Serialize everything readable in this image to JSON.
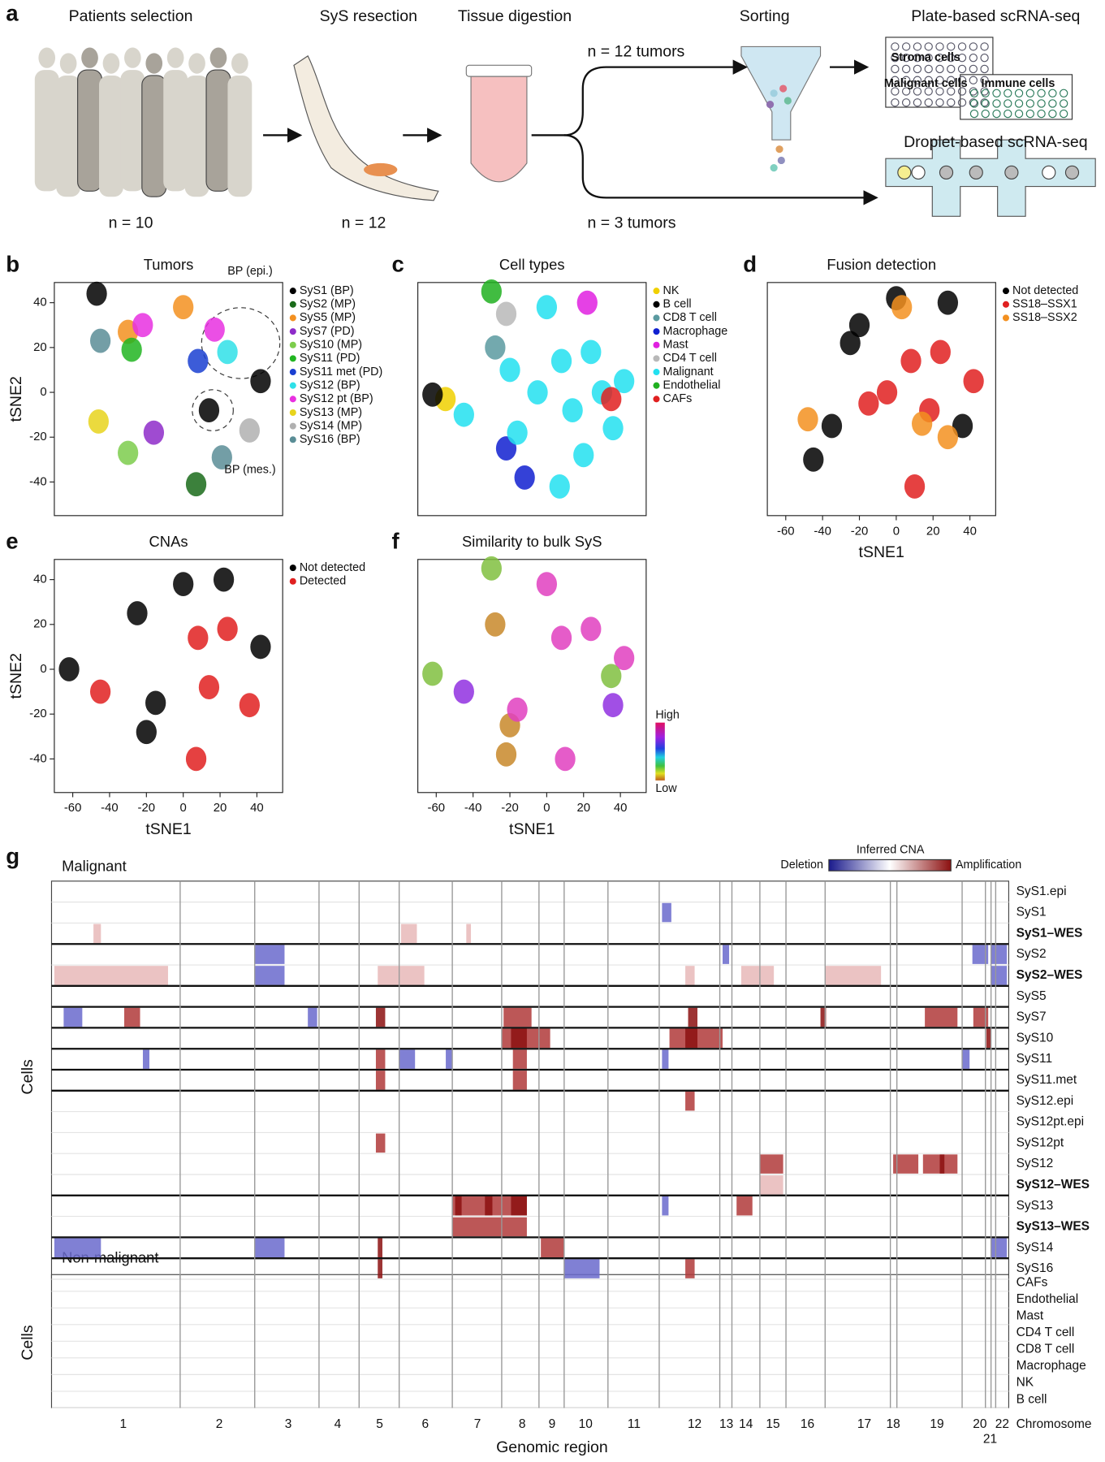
{
  "a": {
    "letter": "a",
    "steps": [
      "Patients selection",
      "SyS resection",
      "Tissue digestion",
      "Sorting",
      "Plate-based scRNA-seq",
      "Droplet-based scRNA-seq"
    ],
    "n": [
      "n = 10",
      "n = 12",
      "n = 12 tumors",
      "n = 3 tumors"
    ],
    "plate_labels": [
      "Stroma cells",
      "Malignant cells",
      "Immune cells"
    ]
  },
  "chart_data": [
    {
      "type": "scatter",
      "letter": "b",
      "title": "Tumors",
      "ylabel": "tSNE2",
      "xlim": [
        -70,
        54
      ],
      "ylim": [
        -55,
        49
      ],
      "yticks": [
        -40,
        -20,
        0,
        20,
        40
      ],
      "annotations": [
        "BP (epi.)",
        "BP (mes.)"
      ],
      "series": [
        {
          "name": "SyS1 (BP)",
          "color": "#000000",
          "x": [
            42,
            14,
            -47
          ],
          "y": [
            5,
            -8,
            44
          ]
        },
        {
          "name": "SyS2 (MP)",
          "color": "#1a6b1a",
          "x": [
            7
          ],
          "y": [
            -41
          ]
        },
        {
          "name": "SyS5 (MP)",
          "color": "#f39020",
          "x": [
            0,
            -30
          ],
          "y": [
            38,
            27
          ]
        },
        {
          "name": "SyS7 (PD)",
          "color": "#8e2bc9",
          "x": [
            -16
          ],
          "y": [
            -18
          ]
        },
        {
          "name": "SyS10 (MP)",
          "color": "#7ccd4c",
          "x": [
            -30
          ],
          "y": [
            -27
          ]
        },
        {
          "name": "SyS11 (PD)",
          "color": "#21b521",
          "x": [
            -28
          ],
          "y": [
            19
          ]
        },
        {
          "name": "SyS11 met (PD)",
          "color": "#1a3fd1",
          "x": [
            8
          ],
          "y": [
            14
          ]
        },
        {
          "name": "SyS12 (BP)",
          "color": "#2fe0e8",
          "x": [
            24
          ],
          "y": [
            18
          ]
        },
        {
          "name": "SyS12 pt (BP)",
          "color": "#e830e0",
          "x": [
            17,
            -22
          ],
          "y": [
            28,
            30
          ]
        },
        {
          "name": "SyS13 (MP)",
          "color": "#e8d41c",
          "x": [
            -46
          ],
          "y": [
            -13
          ]
        },
        {
          "name": "SyS14 (MP)",
          "color": "#b0b0b0",
          "x": [
            36
          ],
          "y": [
            -17
          ]
        },
        {
          "name": "SyS16 (BP)",
          "color": "#5a8d96",
          "x": [
            21,
            -45
          ],
          "y": [
            -29,
            23
          ]
        }
      ]
    },
    {
      "type": "scatter",
      "letter": "c",
      "title": "Cell types",
      "xlim": [
        -70,
        54
      ],
      "ylim": [
        -55,
        49
      ],
      "series": [
        {
          "name": "NK",
          "color": "#f0d000",
          "x": [
            -55
          ],
          "y": [
            -3
          ]
        },
        {
          "name": "B cell",
          "color": "#000000",
          "x": [
            -62
          ],
          "y": [
            -1
          ]
        },
        {
          "name": "CD8 T cell",
          "color": "#5a9aa0",
          "x": [
            -28
          ],
          "y": [
            20
          ]
        },
        {
          "name": "Macrophage",
          "color": "#1020d0",
          "x": [
            -22,
            -12
          ],
          "y": [
            -25,
            -38
          ]
        },
        {
          "name": "Mast",
          "color": "#e020e0",
          "x": [
            22
          ],
          "y": [
            40
          ]
        },
        {
          "name": "CD4 T cell",
          "color": "#b8b8b8",
          "x": [
            -22
          ],
          "y": [
            35
          ]
        },
        {
          "name": "Malignant",
          "color": "#22e0f0",
          "x": [
            0,
            -20,
            8,
            24,
            42,
            -45,
            -16,
            14,
            36,
            20,
            7,
            -5,
            30
          ],
          "y": [
            38,
            10,
            14,
            18,
            5,
            -10,
            -18,
            -8,
            -16,
            -28,
            -42,
            0,
            0
          ]
        },
        {
          "name": "Endothelial",
          "color": "#20b020",
          "x": [
            -30
          ],
          "y": [
            45
          ]
        },
        {
          "name": "CAFs",
          "color": "#e02020",
          "x": [
            35
          ],
          "y": [
            -3
          ]
        }
      ]
    },
    {
      "type": "scatter",
      "letter": "d",
      "title": "Fusion detection",
      "xlabel": "tSNE1",
      "xlim": [
        -70,
        54
      ],
      "ylim": [
        -55,
        49
      ],
      "xticks": [
        -60,
        -40,
        -20,
        0,
        20,
        40
      ],
      "series": [
        {
          "name": "Not detected",
          "color": "#000000",
          "x": [
            -20,
            -45,
            -25,
            36,
            28,
            -35,
            0
          ],
          "y": [
            30,
            -30,
            22,
            -15,
            40,
            -15,
            42
          ]
        },
        {
          "name": "SS18–SSX1",
          "color": "#e02020",
          "x": [
            8,
            24,
            -5,
            42,
            18,
            10,
            -15
          ],
          "y": [
            14,
            18,
            0,
            5,
            -8,
            -42,
            -5
          ]
        },
        {
          "name": "SS18–SSX2",
          "color": "#f39020",
          "x": [
            3,
            -48,
            14,
            28
          ],
          "y": [
            38,
            -12,
            -14,
            -20
          ]
        }
      ]
    },
    {
      "type": "scatter",
      "letter": "e",
      "title": "CNAs",
      "xlabel": "tSNE1",
      "ylabel": "tSNE2",
      "xlim": [
        -70,
        54
      ],
      "ylim": [
        -55,
        49
      ],
      "xticks": [
        -60,
        -40,
        -20,
        0,
        20,
        40
      ],
      "yticks": [
        -40,
        -20,
        0,
        20,
        40
      ],
      "series": [
        {
          "name": "Not detected",
          "color": "#000000",
          "x": [
            -25,
            0,
            -20,
            22,
            42,
            -15,
            -62
          ],
          "y": [
            25,
            38,
            -28,
            40,
            10,
            -15,
            0
          ]
        },
        {
          "name": "Detected",
          "color": "#e02020",
          "x": [
            -45,
            8,
            24,
            36,
            7,
            14
          ],
          "y": [
            -10,
            14,
            18,
            -16,
            -40,
            -8
          ]
        }
      ]
    },
    {
      "type": "scatter",
      "letter": "f",
      "title": "Similarity to bulk SyS",
      "xlabel": "tSNE1",
      "xlim": [
        -70,
        54
      ],
      "ylim": [
        -55,
        49
      ],
      "xticks": [
        -60,
        -40,
        -20,
        0,
        20,
        40
      ],
      "colorbar": [
        "High",
        "Low"
      ],
      "series": [
        {
          "color": "#c8882a",
          "x": [
            -28,
            -20,
            -22
          ],
          "y": [
            20,
            -25,
            -38
          ]
        },
        {
          "color": "#e040c0",
          "x": [
            8,
            24,
            0,
            -16,
            42,
            10
          ],
          "y": [
            14,
            18,
            38,
            -18,
            5,
            -40
          ]
        },
        {
          "color": "#9030e0",
          "x": [
            36,
            -45
          ],
          "y": [
            -16,
            -10
          ]
        },
        {
          "color": "#80c040",
          "x": [
            -30,
            -62,
            35
          ],
          "y": [
            45,
            -2,
            -3
          ]
        }
      ]
    }
  ],
  "g": {
    "letter": "g",
    "malignant_title": "Malignant",
    "nonmalignant_title": "Non-malignant",
    "cells_labels": [
      "Cells",
      "Cells"
    ],
    "legend_title": "Inferred CNA",
    "legend_low": "Deletion",
    "legend_high": "Amplification",
    "malignant_rows": [
      {
        "label": "SyS1.epi",
        "bold": false
      },
      {
        "label": "SyS1",
        "bold": false
      },
      {
        "label": "SyS1–WES",
        "bold": true
      },
      {
        "label": "SyS2",
        "bold": false
      },
      {
        "label": "SyS2–WES",
        "bold": true
      },
      {
        "label": "SyS5",
        "bold": false
      },
      {
        "label": "SyS7",
        "bold": false
      },
      {
        "label": "SyS10",
        "bold": false
      },
      {
        "label": "SyS11",
        "bold": false
      },
      {
        "label": "SyS11.met",
        "bold": false
      },
      {
        "label": "SyS12.epi",
        "bold": false
      },
      {
        "label": "SyS12pt.epi",
        "bold": false
      },
      {
        "label": "SyS12pt",
        "bold": false
      },
      {
        "label": "SyS12",
        "bold": false
      },
      {
        "label": "SyS12–WES",
        "bold": true
      },
      {
        "label": "SyS13",
        "bold": false
      },
      {
        "label": "SyS13–WES",
        "bold": true
      },
      {
        "label": "SyS14",
        "bold": false
      },
      {
        "label": "SyS16",
        "bold": false
      }
    ],
    "nonmalignant_rows": [
      "CAFs",
      "Endothelial",
      "Mast",
      "CD4 T cell",
      "CD8 T cell",
      "Macrophage",
      "NK",
      "B cell"
    ],
    "chromosomes": [
      "1",
      "2",
      "3",
      "4",
      "5",
      "6",
      "7",
      "8",
      "9",
      "10",
      "11",
      "12",
      "13",
      "14",
      "15",
      "16",
      "17",
      "18",
      "19",
      "20",
      "21",
      "22"
    ],
    "chromosome_label": "Chromosome",
    "xlabel": "Genomic region"
  }
}
